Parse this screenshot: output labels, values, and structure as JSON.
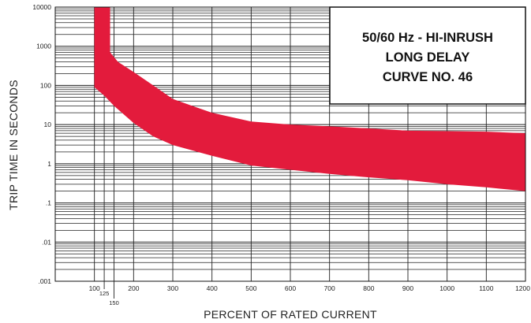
{
  "chart_data": {
    "type": "area",
    "title_lines": [
      "50/60 Hz - HI-INRUSH",
      "LONG DELAY",
      "CURVE NO. 46"
    ],
    "xlabel": "PERCENT OF RATED CURRENT",
    "ylabel": "TRIP TIME IN SECONDS",
    "xlim": [
      0,
      1200
    ],
    "ylim": [
      0.001,
      10000
    ],
    "yscale": "log",
    "grid": true,
    "x_ticks": [
      {
        "value": 100,
        "label": "100"
      },
      {
        "value": 200,
        "label": "200"
      },
      {
        "value": 300,
        "label": "300"
      },
      {
        "value": 400,
        "label": "400"
      },
      {
        "value": 500,
        "label": "500"
      },
      {
        "value": 600,
        "label": "600"
      },
      {
        "value": 700,
        "label": "700"
      },
      {
        "value": 800,
        "label": "800"
      },
      {
        "value": 900,
        "label": "900"
      },
      {
        "value": 1000,
        "label": "1000"
      },
      {
        "value": 1100,
        "label": "1100"
      },
      {
        "value": 1200,
        "label": "1200"
      }
    ],
    "x_ticks_minor": [
      {
        "value": 125,
        "label": "125"
      },
      {
        "value": 150,
        "label": "150"
      }
    ],
    "y_ticks": [
      {
        "value": 10000,
        "label": "10000"
      },
      {
        "value": 1000,
        "label": "1000"
      },
      {
        "value": 100,
        "label": "100"
      },
      {
        "value": 10,
        "label": "10"
      },
      {
        "value": 1,
        "label": "1"
      },
      {
        "value": 0.1,
        "label": ".1"
      },
      {
        "value": 0.01,
        "label": ".01"
      },
      {
        "value": 0.001,
        "label": ".001"
      }
    ],
    "band_color": "#e31b3c",
    "band": {
      "upper": [
        [
          125,
          10000
        ],
        [
          140,
          10000
        ],
        [
          140,
          700
        ],
        [
          160,
          400
        ],
        [
          200,
          220
        ],
        [
          250,
          100
        ],
        [
          300,
          45
        ],
        [
          400,
          20
        ],
        [
          500,
          12
        ],
        [
          600,
          10
        ],
        [
          700,
          9
        ],
        [
          800,
          8
        ],
        [
          900,
          7
        ],
        [
          1000,
          6.8
        ],
        [
          1100,
          6.6
        ],
        [
          1200,
          6
        ]
      ],
      "lower": [
        [
          100,
          10000
        ],
        [
          100,
          90
        ],
        [
          125,
          55
        ],
        [
          150,
          30
        ],
        [
          200,
          11
        ],
        [
          250,
          5
        ],
        [
          300,
          3
        ],
        [
          400,
          1.6
        ],
        [
          500,
          0.9
        ],
        [
          600,
          0.7
        ],
        [
          700,
          0.55
        ],
        [
          800,
          0.45
        ],
        [
          900,
          0.38
        ],
        [
          1000,
          0.3
        ],
        [
          1100,
          0.25
        ],
        [
          1200,
          0.2
        ]
      ]
    }
  }
}
